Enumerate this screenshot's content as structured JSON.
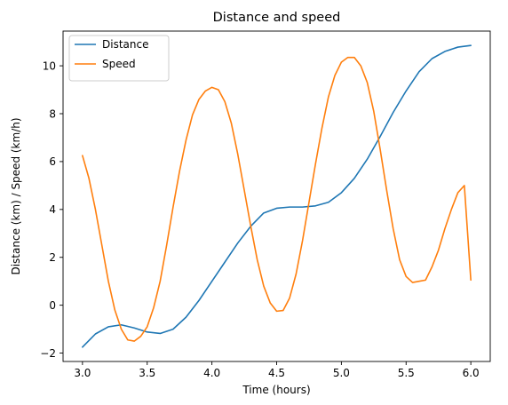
{
  "chart_data": {
    "type": "line",
    "title": "Distance and speed",
    "xlabel": "Time (hours)",
    "ylabel": "Distance (km) / Speed (km/h)",
    "xlim": [
      2.85,
      6.15
    ],
    "ylim": [
      -2.35,
      11.45
    ],
    "xticks": [
      3.0,
      3.5,
      4.0,
      4.5,
      5.0,
      5.5,
      6.0
    ],
    "xtick_labels": [
      "3.0",
      "3.5",
      "4.0",
      "4.5",
      "5.0",
      "5.5",
      "6.0"
    ],
    "yticks": [
      -2,
      0,
      2,
      4,
      6,
      8,
      10
    ],
    "ytick_labels": [
      "−2",
      "0",
      "2",
      "4",
      "6",
      "8",
      "10"
    ],
    "grid": false,
    "legend": "top-left",
    "series": [
      {
        "name": "Distance",
        "color": "#1f77b4",
        "x": [
          3.0,
          3.1,
          3.2,
          3.3,
          3.4,
          3.5,
          3.6,
          3.7,
          3.8,
          3.9,
          4.0,
          4.1,
          4.2,
          4.3,
          4.4,
          4.5,
          4.6,
          4.7,
          4.8,
          4.9,
          5.0,
          5.1,
          5.2,
          5.3,
          5.4,
          5.5,
          5.6,
          5.7,
          5.8,
          5.9,
          6.0
        ],
        "y": [
          -1.75,
          -1.2,
          -0.9,
          -0.82,
          -0.95,
          -1.12,
          -1.18,
          -1.0,
          -0.5,
          0.2,
          1.0,
          1.8,
          2.6,
          3.3,
          3.85,
          4.05,
          4.1,
          4.1,
          4.15,
          4.3,
          4.7,
          5.3,
          6.1,
          7.05,
          8.05,
          8.95,
          9.75,
          10.3,
          10.6,
          10.78,
          10.85
        ]
      },
      {
        "name": "Speed",
        "color": "#ff7f0e",
        "x": [
          3.0,
          3.05,
          3.1,
          3.15,
          3.2,
          3.25,
          3.3,
          3.35,
          3.4,
          3.45,
          3.5,
          3.55,
          3.6,
          3.65,
          3.7,
          3.75,
          3.8,
          3.85,
          3.9,
          3.95,
          4.0,
          4.05,
          4.1,
          4.15,
          4.2,
          4.25,
          4.3,
          4.35,
          4.4,
          4.45,
          4.5,
          4.55,
          4.6,
          4.65,
          4.7,
          4.75,
          4.8,
          4.85,
          4.9,
          4.95,
          5.0,
          5.05,
          5.1,
          5.15,
          5.2,
          5.25,
          5.3,
          5.35,
          5.4,
          5.45,
          5.5,
          5.55,
          5.6,
          5.65,
          5.7,
          5.75,
          5.8,
          5.85,
          5.9,
          5.95,
          6.0
        ],
        "y": [
          6.25,
          5.3,
          4.0,
          2.5,
          1.0,
          -0.2,
          -1.0,
          -1.45,
          -1.5,
          -1.3,
          -0.9,
          -0.1,
          1.0,
          2.5,
          4.1,
          5.6,
          6.9,
          7.95,
          8.6,
          8.95,
          9.1,
          9.0,
          8.5,
          7.6,
          6.3,
          4.8,
          3.3,
          1.9,
          0.8,
          0.1,
          -0.25,
          -0.22,
          0.3,
          1.3,
          2.7,
          4.3,
          5.9,
          7.4,
          8.7,
          9.6,
          10.15,
          10.35,
          10.35,
          10.0,
          9.3,
          8.1,
          6.5,
          4.8,
          3.2,
          1.9,
          1.2,
          0.95,
          1.0,
          1.05,
          1.6,
          2.3,
          3.2,
          4.0,
          4.7,
          5.0,
          1.05
        ]
      }
    ]
  }
}
